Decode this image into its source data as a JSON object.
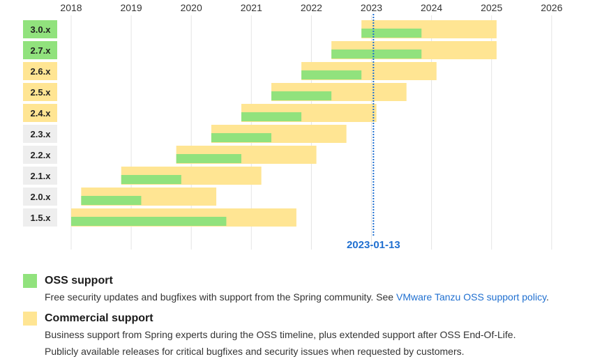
{
  "chart_data": {
    "type": "gantt",
    "x_ticks": [
      "2018",
      "2019",
      "2020",
      "2021",
      "2022",
      "2023",
      "2024",
      "2025",
      "2026"
    ],
    "rows": [
      {
        "label": "3.0.x",
        "label_color": "#91e27d",
        "oss": [
          "2022-11",
          "2023-11"
        ],
        "commercial": [
          "2022-11",
          "2025-02"
        ]
      },
      {
        "label": "2.7.x",
        "label_color": "#91e27d",
        "oss": [
          "2022-05",
          "2023-11"
        ],
        "commercial": [
          "2022-05",
          "2025-02"
        ]
      },
      {
        "label": "2.6.x",
        "label_color": "#ffe593",
        "oss": [
          "2021-11",
          "2022-11"
        ],
        "commercial": [
          "2021-11",
          "2024-02"
        ]
      },
      {
        "label": "2.5.x",
        "label_color": "#ffe593",
        "oss": [
          "2021-05",
          "2022-05"
        ],
        "commercial": [
          "2021-05",
          "2023-08"
        ]
      },
      {
        "label": "2.4.x",
        "label_color": "#ffe593",
        "oss": [
          "2020-11",
          "2021-11"
        ],
        "commercial": [
          "2020-11",
          "2023-02"
        ]
      },
      {
        "label": "2.3.x",
        "label_color": "#eeeeee",
        "oss": [
          "2020-05",
          "2021-05"
        ],
        "commercial": [
          "2020-05",
          "2022-08"
        ]
      },
      {
        "label": "2.2.x",
        "label_color": "#eeeeee",
        "oss": [
          "2019-10",
          "2020-11"
        ],
        "commercial": [
          "2019-10",
          "2022-02"
        ]
      },
      {
        "label": "2.1.x",
        "label_color": "#eeeeee",
        "oss": [
          "2018-11",
          "2019-11"
        ],
        "commercial": [
          "2018-11",
          "2021-03"
        ]
      },
      {
        "label": "2.0.x",
        "label_color": "#eeeeee",
        "oss": [
          "2018-03",
          "2019-03"
        ],
        "commercial": [
          "2018-03",
          "2020-06"
        ]
      },
      {
        "label": "1.5.x",
        "label_color": "#eeeeee",
        "oss": [
          "2018-01",
          "2020-08"
        ],
        "commercial": [
          "2018-01",
          "2021-10"
        ]
      }
    ],
    "today_marker": {
      "date": "2023-01-13",
      "label": "2023-01-13"
    },
    "colors": {
      "oss": "#91e27d",
      "commercial": "#ffe593",
      "marker": "#1f6fd0",
      "grid": "#e4e4e4"
    }
  },
  "legend": {
    "oss": {
      "title": "OSS support",
      "desc_prefix": "Free security updates and bugfixes with support from the Spring community. See ",
      "link_text": "VMware Tanzu OSS support policy",
      "desc_suffix": "."
    },
    "commercial": {
      "title": "Commercial support",
      "desc_line1": "Business support from Spring experts during the OSS timeline, plus extended support after OSS End-Of-Life.",
      "desc_line2": "Publicly available releases for critical bugfixes and security issues when requested by customers."
    }
  }
}
